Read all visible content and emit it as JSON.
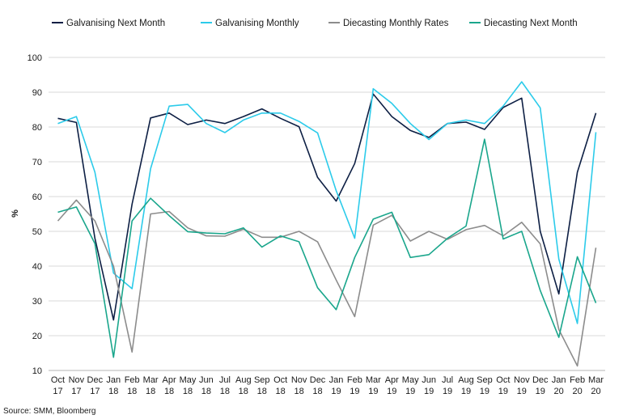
{
  "chart_data": {
    "type": "line",
    "title": "",
    "xlabel": "",
    "ylabel": "%",
    "ylim": [
      10,
      100
    ],
    "yticks": [
      10,
      20,
      30,
      40,
      50,
      60,
      70,
      80,
      90,
      100
    ],
    "grid": "horizontal",
    "legend_position": "top",
    "categories": [
      [
        "Oct",
        "17"
      ],
      [
        "Nov",
        "17"
      ],
      [
        "Dec",
        "17"
      ],
      [
        "Jan",
        "18"
      ],
      [
        "Feb",
        "18"
      ],
      [
        "Mar",
        "18"
      ],
      [
        "Apr",
        "18"
      ],
      [
        "May",
        "18"
      ],
      [
        "Jun",
        "18"
      ],
      [
        "Jul",
        "18"
      ],
      [
        "Aug",
        "18"
      ],
      [
        "Sep",
        "18"
      ],
      [
        "Oct",
        "18"
      ],
      [
        "Nov",
        "18"
      ],
      [
        "Dec",
        "18"
      ],
      [
        "Jan",
        "19"
      ],
      [
        "Feb",
        "19"
      ],
      [
        "Mar",
        "19"
      ],
      [
        "Apr",
        "19"
      ],
      [
        "May",
        "19"
      ],
      [
        "Jun",
        "19"
      ],
      [
        "Jul",
        "19"
      ],
      [
        "Aug",
        "19"
      ],
      [
        "Sep",
        "19"
      ],
      [
        "Oct",
        "19"
      ],
      [
        "Nov",
        "19"
      ],
      [
        "Dec",
        "19"
      ],
      [
        "Jan",
        "20"
      ],
      [
        "Feb",
        "20"
      ],
      [
        "Mar",
        "20"
      ]
    ],
    "series": [
      {
        "name": "Galvanising Next Month",
        "color": "#0d1f44",
        "values": [
          82.5,
          81.3,
          48,
          24.5,
          57.8,
          82.6,
          84,
          80.7,
          82,
          81,
          83,
          85.2,
          82.5,
          80.1,
          65.5,
          58.7,
          69.5,
          89.5,
          83,
          79,
          77,
          81,
          81.4,
          79.3,
          85.6,
          88.3,
          50,
          32,
          67,
          84
        ]
      },
      {
        "name": "Galvanising Monthly",
        "color": "#2ccbea",
        "values": [
          81,
          83,
          67,
          38,
          33.5,
          68,
          86,
          86.5,
          81,
          78.4,
          82,
          84,
          84,
          81.6,
          78.3,
          61.7,
          48,
          91,
          86.8,
          81,
          76.4,
          81,
          82,
          81,
          86,
          93,
          85.5,
          42,
          23.5,
          78.5
        ]
      },
      {
        "name": "Diecasting Monthly Rates",
        "color": "#8c8c8c",
        "values": [
          53,
          59,
          53,
          40,
          15.3,
          55,
          55.7,
          51,
          48.7,
          48.6,
          50.6,
          48.3,
          48.3,
          50,
          47,
          36,
          25.5,
          51.8,
          54.6,
          47.2,
          50,
          47.7,
          50.5,
          51.7,
          48.7,
          52.6,
          46.4,
          21.8,
          11.3,
          45.3
        ]
      },
      {
        "name": "Diecasting Next Month",
        "color": "#1aa68c",
        "values": [
          55.5,
          57,
          46.5,
          13.8,
          53,
          59.5,
          54.5,
          49.9,
          49.5,
          49.3,
          51,
          45.5,
          48.7,
          47,
          33.8,
          27.5,
          42.5,
          53.5,
          55.5,
          42.5,
          43.3,
          48,
          51.5,
          76.5,
          47.8,
          50,
          33,
          19.5,
          42.7,
          29.4
        ]
      }
    ]
  },
  "source_text": "Source: SMM, Bloomberg"
}
